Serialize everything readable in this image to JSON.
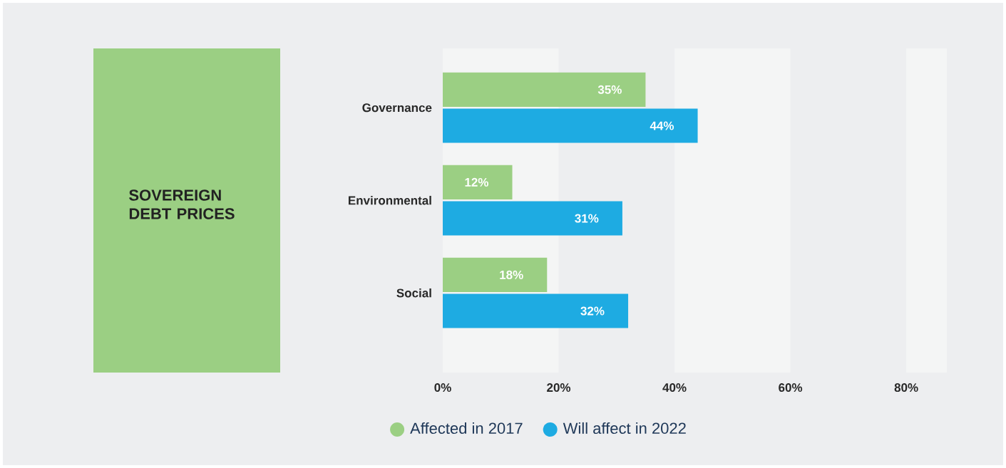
{
  "chart_data": {
    "type": "bar",
    "orientation": "horizontal",
    "title": "SOVEREIGN DEBT PRICES",
    "categories": [
      "Governance",
      "Environmental",
      "Social"
    ],
    "series": [
      {
        "name": "Affected in 2017",
        "color": "#9bcf83",
        "values": [
          35,
          12,
          18
        ],
        "value_labels": [
          "35%",
          "12%",
          "18%"
        ]
      },
      {
        "name": "Will affect in 2022",
        "color": "#1eabe2",
        "values": [
          44,
          31,
          32
        ],
        "value_labels": [
          "44%",
          "31%",
          "32%"
        ]
      }
    ],
    "xlim": [
      0,
      87
    ],
    "xticks": [
      {
        "value": 0,
        "label": "0%"
      },
      {
        "value": 20,
        "label": "20%"
      },
      {
        "value": 40,
        "label": "40%"
      },
      {
        "value": 60,
        "label": "60%"
      },
      {
        "value": 80,
        "label": "80%"
      }
    ],
    "bands": [
      {
        "axis": "x",
        "from": 0,
        "to": 20,
        "color": "#f4f5f5"
      },
      {
        "axis": "x",
        "from": 40,
        "to": 60,
        "color": "#f4f5f5"
      },
      {
        "axis": "x",
        "from": 80,
        "to": 87,
        "color": "#f4f5f5"
      }
    ],
    "legend": "bottom"
  }
}
